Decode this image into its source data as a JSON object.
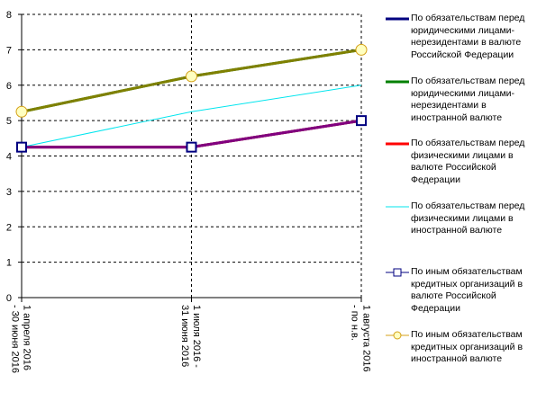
{
  "chart_data": {
    "type": "line",
    "categories": [
      "1 апреля 2016 - 30 июня 2016",
      "1 июля 2016 - 31 июня 2016",
      "1 августа 2016 - по н.в."
    ],
    "ylim": [
      0,
      8
    ],
    "yticks": [
      0,
      1,
      2,
      3,
      4,
      5,
      6,
      7,
      8
    ],
    "grid": "dashed",
    "legend_position": "right",
    "series": [
      {
        "name": "По обязательствам перед юридическими лицами-нерезидентами в валюте Российской Федерации",
        "values": [
          4.25,
          4.25,
          5
        ],
        "color": "#000080",
        "marker": "none"
      },
      {
        "name": "По обязательствам перед юридическими лицами-нерезидентами в иностранной валюте",
        "values": [
          5.25,
          6.25,
          7
        ],
        "color": "#008000",
        "marker": "none"
      },
      {
        "name": "По обязательствам перед физическими лицами в валюте Российской Федерации",
        "values": [
          4.25,
          4.25,
          5
        ],
        "color": "#ff0000",
        "marker": "none"
      },
      {
        "name": "По обязательствам перед физическими лицами в иностранной валюте",
        "values": [
          4.25,
          5.25,
          6
        ],
        "color": "#00e5ee",
        "marker": "none"
      },
      {
        "name": "По иным обязательствам кредитных организаций в валюте Российской Федерации",
        "values": [
          4.25,
          4.25,
          5
        ],
        "color": "#800080",
        "marker": "square"
      },
      {
        "name": "По иным обязательствам кредитных организаций в иностранной валюте",
        "values": [
          5.25,
          6.25,
          7
        ],
        "color": "#808000",
        "marker": "circle"
      }
    ]
  }
}
